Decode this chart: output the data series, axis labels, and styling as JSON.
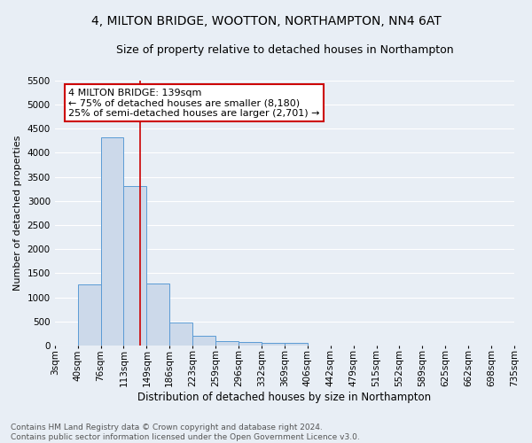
{
  "title": "4, MILTON BRIDGE, WOOTTON, NORTHAMPTON, NN4 6AT",
  "subtitle": "Size of property relative to detached houses in Northampton",
  "xlabel": "Distribution of detached houses by size in Northampton",
  "ylabel": "Number of detached properties",
  "bin_labels": [
    "3sqm",
    "40sqm",
    "76sqm",
    "113sqm",
    "149sqm",
    "186sqm",
    "223sqm",
    "259sqm",
    "296sqm",
    "332sqm",
    "369sqm",
    "406sqm",
    "442sqm",
    "479sqm",
    "515sqm",
    "552sqm",
    "589sqm",
    "625sqm",
    "662sqm",
    "698sqm",
    "735sqm"
  ],
  "bar_values": [
    0,
    1270,
    4320,
    3300,
    1290,
    480,
    210,
    95,
    75,
    50,
    55,
    0,
    0,
    0,
    0,
    0,
    0,
    0,
    0,
    0
  ],
  "bar_color": "#ccd9ea",
  "bar_edge_color": "#5b9bd5",
  "vline_color": "#cc0000",
  "annotation_text": "4 MILTON BRIDGE: 139sqm\n← 75% of detached houses are smaller (8,180)\n25% of semi-detached houses are larger (2,701) →",
  "annotation_box_color": "white",
  "annotation_box_edge": "#cc0000",
  "ylim": [
    0,
    5500
  ],
  "yticks": [
    0,
    500,
    1000,
    1500,
    2000,
    2500,
    3000,
    3500,
    4000,
    4500,
    5000,
    5500
  ],
  "footnote": "Contains HM Land Registry data © Crown copyright and database right 2024.\nContains public sector information licensed under the Open Government Licence v3.0.",
  "bg_color": "#e8eef5",
  "plot_bg_color": "#e8eef5",
  "grid_color": "#ffffff",
  "title_fontsize": 10,
  "subtitle_fontsize": 9,
  "xlabel_fontsize": 8.5,
  "ylabel_fontsize": 8,
  "tick_fontsize": 7.5,
  "annotation_fontsize": 8,
  "footnote_fontsize": 6.5
}
